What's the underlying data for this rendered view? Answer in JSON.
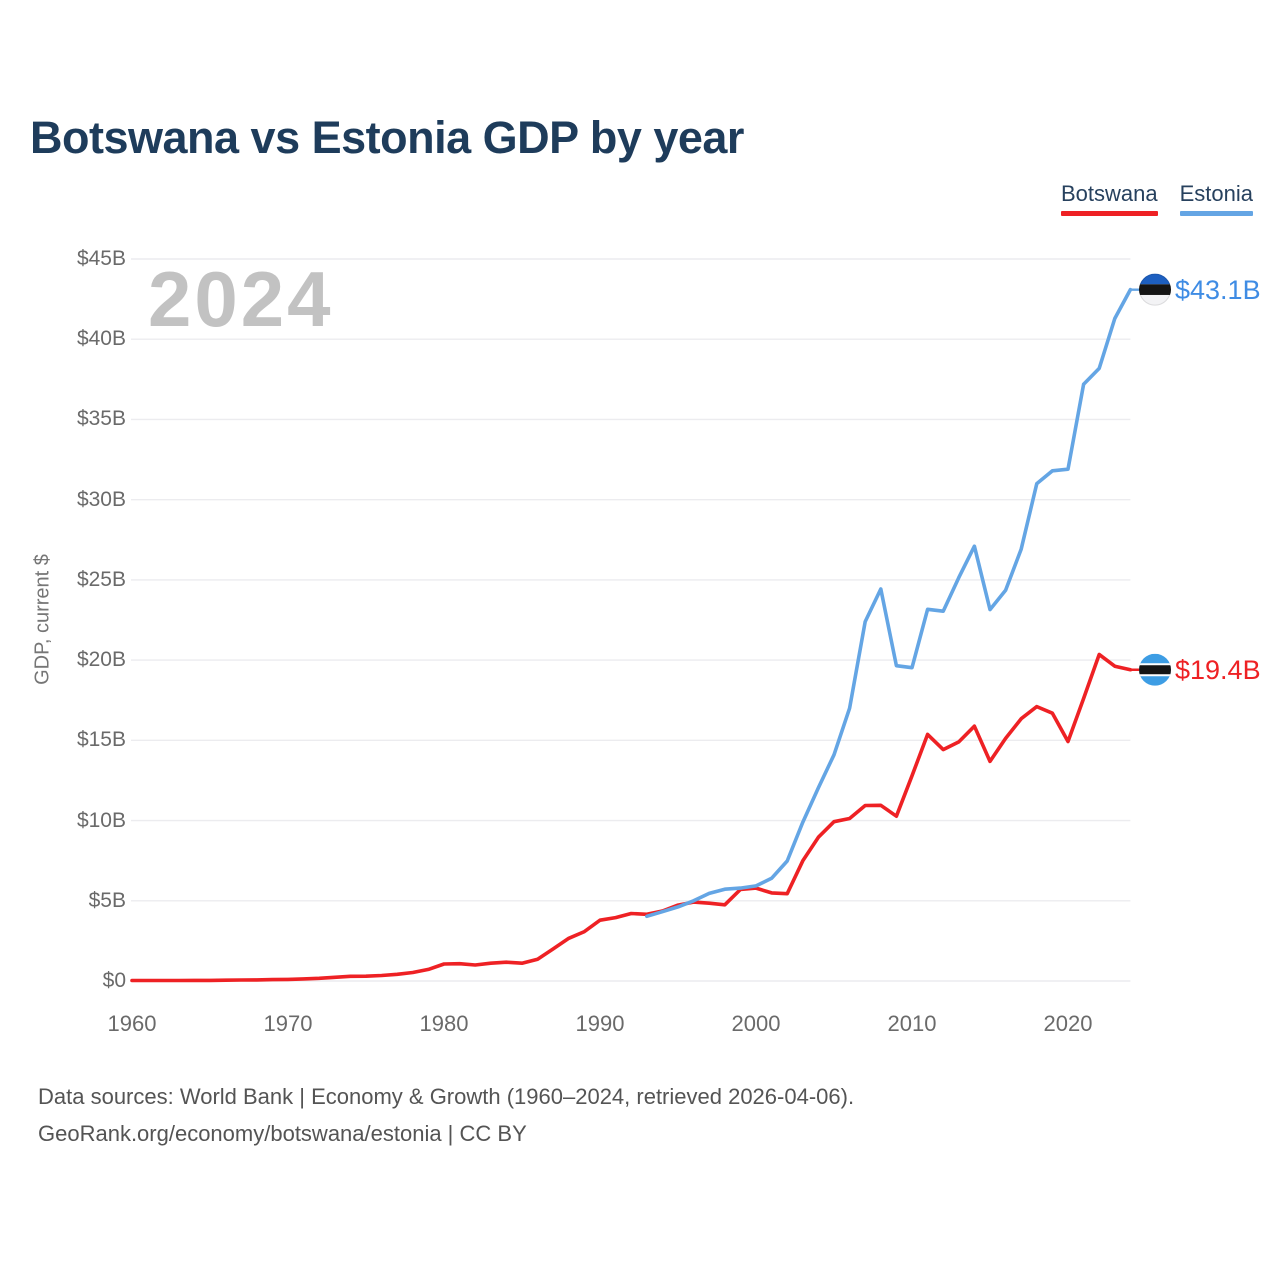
{
  "title": "Botswana vs Estonia GDP by year",
  "watermark": "2024",
  "legend": {
    "items": [
      {
        "label": "Botswana",
        "color": "#ee2124"
      },
      {
        "label": "Estonia",
        "color": "#64a5e4"
      }
    ]
  },
  "footer": {
    "line1": "Data sources: World Bank | Economy & Growth (1960–2024, retrieved 2026-04-06).",
    "line2": "GeoRank.org/economy/botswana/estonia | CC BY"
  },
  "colors": {
    "title": "#1e3c5b",
    "axis_text": "#6a6a6a",
    "gridline": "#ececef",
    "watermark": "#c2c2c2",
    "estonia_flag_blue": "#1d5fc0",
    "botswana_flag_blue": "#3d9de4",
    "flag_black": "#151515"
  },
  "chart_data": {
    "type": "line",
    "title": "Botswana vs Estonia GDP by year",
    "xlabel": "",
    "ylabel": "GDP, current $",
    "xlim": [
      1960,
      2024
    ],
    "ylim": [
      0,
      45
    ],
    "grid": "horizontal",
    "legend_position": "top-right",
    "x": [
      1960,
      1961,
      1962,
      1963,
      1964,
      1965,
      1966,
      1967,
      1968,
      1969,
      1970,
      1971,
      1972,
      1973,
      1974,
      1975,
      1976,
      1977,
      1978,
      1979,
      1980,
      1981,
      1982,
      1983,
      1984,
      1985,
      1986,
      1987,
      1988,
      1989,
      1990,
      1991,
      1992,
      1993,
      1994,
      1995,
      1996,
      1997,
      1998,
      1999,
      2000,
      2001,
      2002,
      2003,
      2004,
      2005,
      2006,
      2007,
      2008,
      2009,
      2010,
      2011,
      2012,
      2013,
      2014,
      2015,
      2016,
      2017,
      2018,
      2019,
      2020,
      2021,
      2022,
      2023,
      2024
    ],
    "xticks": [
      1960,
      1970,
      1980,
      1990,
      2000,
      2010,
      2020
    ],
    "ytick_values": [
      0,
      5,
      10,
      15,
      20,
      25,
      30,
      35,
      40,
      45
    ],
    "ytick_labels": [
      "$0",
      "$5B",
      "$10B",
      "$15B",
      "$20B",
      "$25B",
      "$30B",
      "$35B",
      "$40B",
      "$45B"
    ],
    "units": "billions of current US$",
    "series": [
      {
        "name": "Botswana",
        "color": "#ee2124",
        "end_label": "$19.4B",
        "end_value": 19.4,
        "flag": "botswana",
        "values": [
          0.03,
          0.03,
          0.03,
          0.03,
          0.04,
          0.04,
          0.05,
          0.06,
          0.07,
          0.09,
          0.1,
          0.13,
          0.17,
          0.23,
          0.29,
          0.3,
          0.34,
          0.42,
          0.53,
          0.72,
          1.06,
          1.08,
          1.0,
          1.11,
          1.17,
          1.11,
          1.36,
          2.0,
          2.66,
          3.08,
          3.79,
          3.95,
          4.21,
          4.16,
          4.36,
          4.73,
          4.92,
          4.85,
          4.75,
          5.7,
          5.79,
          5.49,
          5.44,
          7.49,
          8.96,
          9.93,
          10.13,
          10.94,
          10.95,
          10.27,
          12.79,
          15.37,
          14.42,
          14.9,
          15.88,
          13.69,
          15.12,
          16.35,
          17.1,
          16.69,
          14.93,
          17.61,
          20.35,
          19.62,
          19.4
        ]
      },
      {
        "name": "Estonia",
        "color": "#64a5e4",
        "end_label": "$43.1B",
        "end_value": 43.1,
        "flag": "estonia",
        "values": [
          null,
          null,
          null,
          null,
          null,
          null,
          null,
          null,
          null,
          null,
          null,
          null,
          null,
          null,
          null,
          null,
          null,
          null,
          null,
          null,
          null,
          null,
          null,
          null,
          null,
          null,
          null,
          null,
          null,
          null,
          null,
          null,
          null,
          4.03,
          4.32,
          4.62,
          5.0,
          5.46,
          5.72,
          5.79,
          5.93,
          6.4,
          7.48,
          9.9,
          12.05,
          14.1,
          17.0,
          22.4,
          24.43,
          19.65,
          19.53,
          23.17,
          23.05,
          25.14,
          27.1,
          23.15,
          24.35,
          26.92,
          31.0,
          31.8,
          31.9,
          37.19,
          38.18,
          41.29,
          43.09
        ]
      }
    ]
  }
}
